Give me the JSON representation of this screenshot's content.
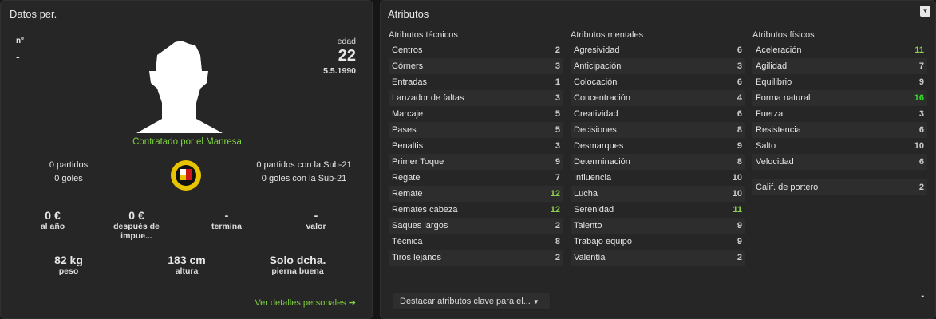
{
  "left": {
    "title": "Datos per.",
    "number_label": "nº",
    "number_value": "-",
    "age_label": "edad",
    "age_value": "22",
    "birth_date": "5.5.1990",
    "status": "Contratado por el Manresa",
    "caps": "0 partidos",
    "goals": "0 goles",
    "u21_caps": "0 partidos con la Sub-21",
    "u21_goals": "0 goles con la Sub-21",
    "finance": [
      {
        "value": "0 €",
        "label": "al año"
      },
      {
        "value": "0 €",
        "label": "después de impue..."
      },
      {
        "value": "-",
        "label": "termina"
      },
      {
        "value": "-",
        "label": "valor"
      }
    ],
    "physical": [
      {
        "value": "82 kg",
        "label": "peso"
      },
      {
        "value": "183 cm",
        "label": "altura"
      },
      {
        "value": "Solo dcha.",
        "label": "pierna buena"
      }
    ],
    "details_link": "Ver detalles personales"
  },
  "right": {
    "title": "Atributos",
    "columns": [
      {
        "header": "Atributos técnicos",
        "items": [
          {
            "name": "Centros",
            "value": "2"
          },
          {
            "name": "Córners",
            "value": "3"
          },
          {
            "name": "Entradas",
            "value": "1"
          },
          {
            "name": "Lanzador de faltas",
            "value": "3"
          },
          {
            "name": "Marcaje",
            "value": "5"
          },
          {
            "name": "Pases",
            "value": "5"
          },
          {
            "name": "Penaltis",
            "value": "3"
          },
          {
            "name": "Primer Toque",
            "value": "9"
          },
          {
            "name": "Regate",
            "value": "7"
          },
          {
            "name": "Remate",
            "value": "12"
          },
          {
            "name": "Remates cabeza",
            "value": "12"
          },
          {
            "name": "Saques largos",
            "value": "2"
          },
          {
            "name": "Técnica",
            "value": "8"
          },
          {
            "name": "Tiros lejanos",
            "value": "2"
          }
        ]
      },
      {
        "header": "Atributos mentales",
        "items": [
          {
            "name": "Agresividad",
            "value": "6"
          },
          {
            "name": "Anticipación",
            "value": "3"
          },
          {
            "name": "Colocación",
            "value": "6"
          },
          {
            "name": "Concentración",
            "value": "4"
          },
          {
            "name": "Creatividad",
            "value": "6"
          },
          {
            "name": "Decisiones",
            "value": "8"
          },
          {
            "name": "Desmarques",
            "value": "9"
          },
          {
            "name": "Determinación",
            "value": "8"
          },
          {
            "name": "Influencia",
            "value": "10"
          },
          {
            "name": "Lucha",
            "value": "10"
          },
          {
            "name": "Serenidad",
            "value": "11"
          },
          {
            "name": "Talento",
            "value": "9"
          },
          {
            "name": "Trabajo equipo",
            "value": "9"
          },
          {
            "name": "Valentía",
            "value": "2"
          }
        ]
      },
      {
        "header": "Atributos físicos",
        "items": [
          {
            "name": "Aceleración",
            "value": "11"
          },
          {
            "name": "Agilidad",
            "value": "7"
          },
          {
            "name": "Equilibrio",
            "value": "9"
          },
          {
            "name": "Forma natural",
            "value": "16"
          },
          {
            "name": "Fuerza",
            "value": "3"
          },
          {
            "name": "Resistencia",
            "value": "6"
          },
          {
            "name": "Salto",
            "value": "10"
          },
          {
            "name": "Velocidad",
            "value": "6"
          }
        ]
      }
    ],
    "goalkeeper": {
      "name": "Calif. de portero",
      "value": "2"
    },
    "highlight_dropdown": "Destacar atributos clave para el...",
    "bottom_right": "-"
  },
  "colors": {
    "accent_green": "#7ed23f",
    "high_value": "#8fd14f",
    "top_value": "#33e022"
  }
}
